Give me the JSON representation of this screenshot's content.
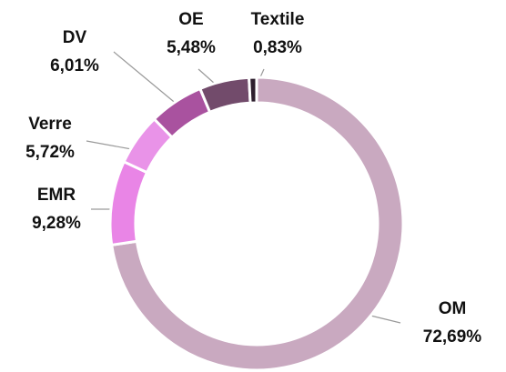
{
  "chart_data": {
    "type": "donut",
    "categories": [
      "OM",
      "EMR",
      "Verre",
      "DV",
      "OE",
      "Textile"
    ],
    "values": [
      72.69,
      9.28,
      5.72,
      6.01,
      5.48,
      0.83
    ],
    "value_labels": [
      "72,69%",
      "9,28%",
      "5,72%",
      "6,01%",
      "5,48%",
      "0,83%"
    ],
    "colors": [
      "#c9a9c0",
      "#e985e6",
      "#e993e8",
      "#a9529f",
      "#724b6b",
      "#2e1f2e"
    ]
  }
}
